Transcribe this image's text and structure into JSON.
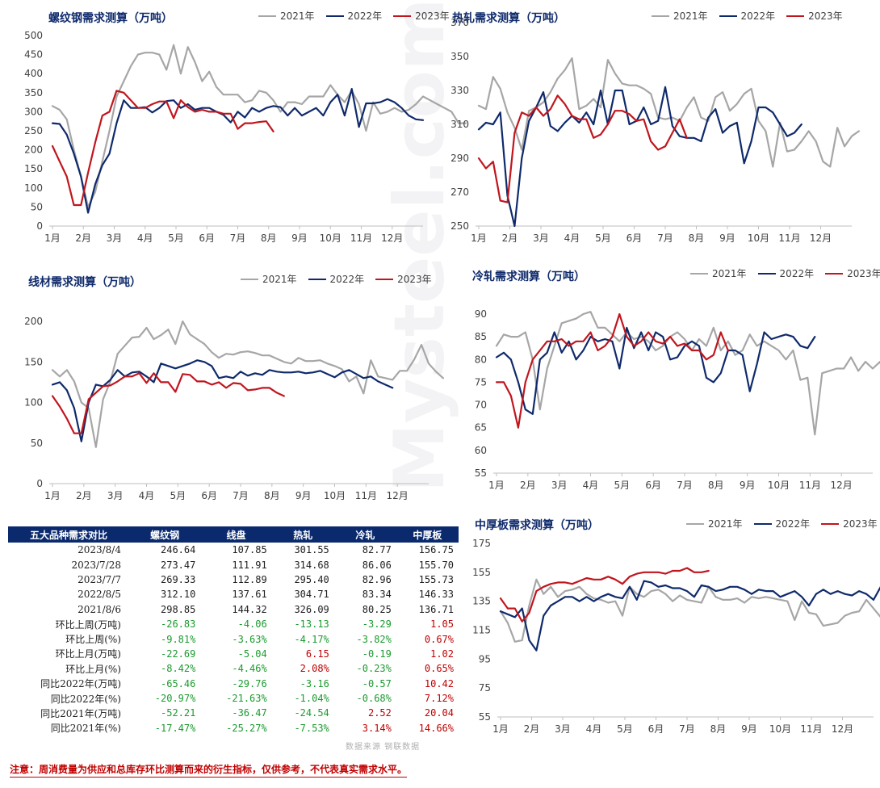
{
  "legend_labels": [
    "2021年",
    "2022年",
    "2023年"
  ],
  "colors": {
    "2021": "#a6a6a6",
    "2022": "#0f2a6b",
    "2023": "#c0161e",
    "title": "#0f2a6b",
    "table_header": "#0b2a6e",
    "positive": "#c00000",
    "negative": "#1a9a2e"
  },
  "months": [
    "1月",
    "2月",
    "3月",
    "4月",
    "5月",
    "6月",
    "7月",
    "8月",
    "9月",
    "10月",
    "11月",
    "12月"
  ],
  "chart_data": [
    {
      "type": "line",
      "title": "螺纹钢需求测算（万吨）",
      "ylim": [
        0,
        500
      ],
      "yticks": [
        "0",
        "50",
        "100",
        "150",
        "200",
        "250",
        "300",
        "350",
        "400",
        "450",
        "500"
      ],
      "series": [
        {
          "name": "2021年",
          "values": [
            315,
            305,
            280,
            200,
            130,
            50,
            90,
            170,
            250,
            340,
            380,
            420,
            450,
            455,
            455,
            450,
            410,
            475,
            400,
            470,
            430,
            380,
            405,
            365,
            345,
            345,
            345,
            325,
            330,
            355,
            350,
            330,
            300,
            325,
            325,
            320,
            340,
            340,
            340,
            370,
            345,
            325,
            355,
            320,
            250,
            325,
            295,
            300,
            310,
            300,
            305,
            320,
            340,
            330,
            320,
            310,
            300,
            270,
            270
          ]
        },
        {
          "name": "2022年",
          "values": [
            270,
            268,
            240,
            190,
            130,
            35,
            110,
            160,
            190,
            270,
            330,
            310,
            310,
            312,
            298,
            310,
            328,
            330,
            310,
            320,
            305,
            310,
            310,
            300,
            292,
            272,
            300,
            285,
            310,
            300,
            310,
            315,
            312,
            290,
            310,
            290,
            300,
            310,
            290,
            325,
            345,
            290,
            360,
            260,
            322,
            322,
            325,
            333,
            325,
            310,
            290,
            280,
            278
          ]
        },
        {
          "name": "2023年",
          "values": [
            210,
            170,
            130,
            55,
            55,
            140,
            220,
            290,
            300,
            355,
            350,
            330,
            310,
            310,
            320,
            327,
            327,
            283,
            330,
            312,
            300,
            305,
            300,
            300,
            295,
            295,
            255,
            270,
            270,
            273,
            275,
            248
          ]
        }
      ]
    },
    {
      "type": "line",
      "title": "热轧需求测算（万吨）",
      "ylim": [
        250,
        370
      ],
      "yticks": [
        "250",
        "270",
        "290",
        "310",
        "330",
        "350",
        "370"
      ],
      "series": [
        {
          "name": "2021年",
          "values": [
            321,
            319,
            338,
            331,
            317,
            308,
            295,
            318,
            320,
            323,
            329,
            337,
            342,
            349,
            319,
            321,
            325,
            320,
            348,
            340,
            334,
            333,
            333,
            331,
            328,
            314,
            313,
            314,
            312,
            320,
            326,
            314,
            312,
            326,
            329,
            318,
            322,
            328,
            331,
            312,
            306,
            285,
            311,
            294,
            295,
            300,
            306,
            300,
            288,
            285,
            308,
            297,
            303,
            306
          ]
        },
        {
          "name": "2022年",
          "values": [
            307,
            311,
            310,
            317,
            268,
            250,
            290,
            312,
            320,
            329,
            309,
            306,
            311,
            315,
            311,
            317,
            310,
            330,
            310,
            330,
            330,
            310,
            312,
            320,
            310,
            312,
            332,
            309,
            303,
            302,
            302,
            300,
            314,
            319,
            305,
            309,
            311,
            287,
            300,
            320,
            320,
            317,
            310,
            303,
            305,
            310
          ]
        },
        {
          "name": "2023年",
          "values": [
            290,
            284,
            288,
            265,
            264,
            305,
            317,
            315,
            320,
            315,
            319,
            327,
            322,
            315,
            313,
            313,
            302,
            304,
            310,
            318,
            318,
            316,
            312,
            313,
            300,
            295,
            297,
            305,
            313,
            302
          ]
        }
      ]
    },
    {
      "type": "line",
      "title": "线材需求测算（万吨）",
      "ylim": [
        0,
        200
      ],
      "yticks": [
        "0",
        "50",
        "100",
        "150",
        "200"
      ],
      "series": [
        {
          "name": "2021年",
          "values": [
            140,
            132,
            140,
            126,
            100,
            93,
            45,
            104,
            126,
            160,
            170,
            180,
            181,
            192,
            178,
            183,
            190,
            172,
            200,
            184,
            178,
            172,
            162,
            155,
            160,
            159,
            162,
            163,
            161,
            158,
            158,
            154,
            150,
            148,
            155,
            151,
            151,
            152,
            148,
            145,
            141,
            126,
            132,
            111,
            152,
            132,
            130,
            128,
            139,
            139,
            153,
            171,
            148,
            138,
            130
          ]
        },
        {
          "name": "2022年",
          "values": [
            122,
            125,
            115,
            93,
            52,
            100,
            122,
            120,
            128,
            140,
            132,
            137,
            138,
            132,
            125,
            148,
            145,
            142,
            145,
            148,
            152,
            150,
            145,
            130,
            132,
            130,
            138,
            133,
            136,
            134,
            140,
            138,
            137,
            137,
            138,
            136,
            137,
            139,
            135,
            131,
            137,
            140,
            135,
            130,
            132,
            126,
            122,
            118
          ]
        },
        {
          "name": "2023年",
          "values": [
            108,
            95,
            80,
            62,
            62,
            104,
            112,
            120,
            121,
            126,
            132,
            132,
            136,
            124,
            136,
            125,
            125,
            113,
            135,
            134,
            126,
            126,
            122,
            125,
            118,
            124,
            123,
            115,
            116,
            118,
            118,
            112,
            108
          ]
        }
      ]
    },
    {
      "type": "line",
      "title": "冷轧需求测算（万吨）",
      "ylim": [
        55,
        90
      ],
      "yticks": [
        "55",
        "60",
        "65",
        "70",
        "75",
        "80",
        "85",
        "90"
      ],
      "series": [
        {
          "name": "2021年",
          "values": [
            83,
            85.5,
            85,
            85,
            86,
            80,
            69,
            78,
            83,
            88,
            88.5,
            89,
            90,
            90.5,
            87,
            87,
            85.5,
            84,
            86,
            84.5,
            85,
            84,
            82,
            83,
            85,
            86,
            84.5,
            82,
            84.5,
            83,
            87,
            82,
            84,
            81,
            82,
            85.5,
            83,
            84,
            83,
            82,
            80,
            82,
            75.5,
            76,
            63.5,
            77,
            77.5,
            78,
            78,
            80.5,
            77.5,
            79.5,
            78,
            79.5,
            75,
            79,
            76,
            77,
            78
          ]
        },
        {
          "name": "2022年",
          "values": [
            80.5,
            81.5,
            80,
            75,
            69,
            68,
            80,
            81.5,
            86,
            81.5,
            84,
            80,
            82,
            85,
            84,
            84.5,
            84,
            78,
            87,
            82.5,
            86,
            82,
            86,
            85,
            80,
            80.5,
            83,
            84,
            83,
            76,
            75,
            77,
            82,
            82,
            81,
            73,
            79,
            86,
            84.5,
            85,
            85.5,
            85,
            83,
            82.5,
            85
          ]
        },
        {
          "name": "2023年",
          "values": [
            75,
            75,
            72,
            65,
            75,
            80,
            82,
            84,
            84,
            84.5,
            83,
            84,
            84,
            86,
            82,
            83,
            85,
            90,
            85,
            83,
            84,
            86,
            84,
            83.5,
            85,
            83,
            83.5,
            82,
            82,
            80,
            81,
            86,
            82
          ]
        }
      ]
    },
    {
      "type": "line",
      "title": "中厚板需求测算（万吨）",
      "ylim": [
        55,
        175
      ],
      "yticks": [
        "55",
        "75",
        "95",
        "115",
        "135",
        "155",
        "175"
      ],
      "series": [
        {
          "name": "2021年",
          "values": [
            128,
            120,
            107,
            108,
            132,
            150,
            140,
            145,
            138,
            142,
            143,
            145,
            140,
            137,
            136,
            134,
            135,
            125,
            145,
            140,
            138,
            142,
            143,
            140,
            135,
            139,
            136,
            135,
            134,
            145,
            138,
            136,
            136,
            137,
            134,
            138,
            137,
            138,
            137,
            136,
            135,
            122,
            135,
            127,
            126,
            118,
            119,
            120,
            125,
            127,
            128,
            136,
            130,
            124
          ]
        },
        {
          "name": "2022年",
          "values": [
            128,
            126,
            124,
            130,
            108,
            101,
            125,
            132,
            135,
            138,
            138,
            135,
            138,
            135,
            138,
            140,
            138,
            137,
            145,
            136,
            149,
            148,
            145,
            146,
            144,
            144,
            142,
            138,
            146,
            145,
            142,
            143,
            145,
            145,
            143,
            140,
            143,
            142,
            142,
            138,
            140,
            142,
            138,
            132,
            140,
            143,
            140,
            142,
            140,
            139,
            142,
            140,
            136,
            145,
            141,
            140
          ]
        },
        {
          "name": "2023年",
          "values": [
            137,
            130,
            130,
            121,
            127,
            142,
            145,
            147,
            148,
            148,
            147,
            149,
            151,
            150,
            150,
            152,
            150,
            147,
            152,
            154,
            155,
            155,
            155,
            154,
            156,
            156,
            158,
            155,
            155,
            156
          ]
        }
      ]
    }
  ],
  "table": {
    "headers": [
      "五大品种需求对比",
      "螺纹钢",
      "线盘",
      "热轧",
      "冷轧",
      "中厚板"
    ],
    "rows": [
      {
        "label": "2023/8/4",
        "values": [
          "246.64",
          "107.85",
          "301.55",
          "82.77",
          "156.75"
        ]
      },
      {
        "label": "2023/7/28",
        "values": [
          "273.47",
          "111.91",
          "314.68",
          "86.06",
          "155.70"
        ]
      },
      {
        "label": "2023/7/7",
        "values": [
          "269.33",
          "112.89",
          "295.40",
          "82.96",
          "155.73"
        ]
      },
      {
        "label": "2022/8/5",
        "values": [
          "312.10",
          "137.61",
          "304.71",
          "83.34",
          "146.33"
        ]
      },
      {
        "label": "2021/8/6",
        "values": [
          "298.85",
          "144.32",
          "326.09",
          "80.25",
          "136.71"
        ]
      },
      {
        "label": "环比上周(万吨)",
        "values": [
          "-26.83",
          "-4.06",
          "-13.13",
          "-3.29",
          "1.05"
        ]
      },
      {
        "label": "环比上周(%)",
        "values": [
          "-9.81%",
          "-3.63%",
          "-4.17%",
          "-3.82%",
          "0.67%"
        ]
      },
      {
        "label": "环比上月(万吨)",
        "values": [
          "-22.69",
          "-5.04",
          "6.15",
          "-0.19",
          "1.02"
        ]
      },
      {
        "label": "环比上月(%)",
        "values": [
          "-8.42%",
          "-4.46%",
          "2.08%",
          "-0.23%",
          "0.65%"
        ]
      },
      {
        "label": "同比2022年(万吨)",
        "values": [
          "-65.46",
          "-29.76",
          "-3.16",
          "-0.57",
          "10.42"
        ]
      },
      {
        "label": "同比2022年(%)",
        "values": [
          "-20.97%",
          "-21.63%",
          "-1.04%",
          "-0.68%",
          "7.12%"
        ]
      },
      {
        "label": "同比2021年(万吨)",
        "values": [
          "-52.21",
          "-36.47",
          "-24.54",
          "2.52",
          "20.04"
        ]
      },
      {
        "label": "同比2021年(%)",
        "values": [
          "-17.47%",
          "-25.27%",
          "-7.53%",
          "3.14%",
          "14.66%"
        ]
      }
    ]
  },
  "source": "数据来源  钢联数据",
  "watermark": "Mysteel.com",
  "footnote": "注意：周消费量为供应和总库存环比测算而来的衍生指标，仅供参考，不代表真实需求水平。"
}
